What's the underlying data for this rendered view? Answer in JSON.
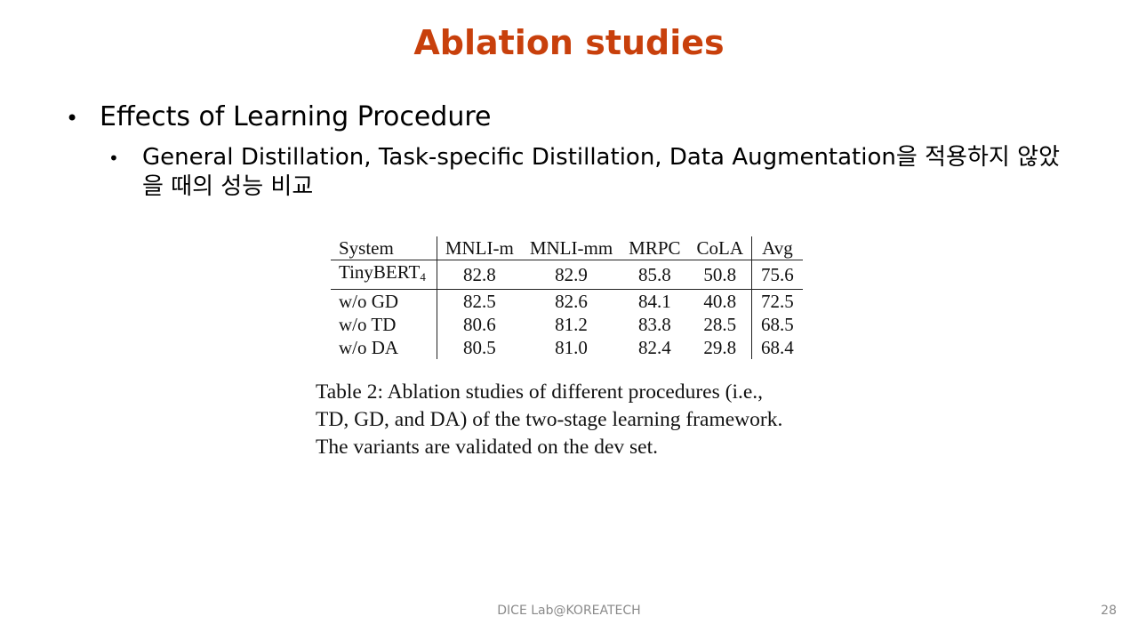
{
  "slide": {
    "title": "Ablation studies",
    "bullet_1": "Effects of Learning Procedure",
    "bullet_2": "General Distillation, Task-specific Distillation, Data Augmentation을 적용하지 않았을 때의 성능 비교",
    "bullet_glyph": "•"
  },
  "table": {
    "headers": [
      "System",
      "MNLI-m",
      "MNLI-mm",
      "MRPC",
      "CoLA",
      "Avg"
    ],
    "rows": [
      {
        "system": "TinyBERT",
        "system_sub": "4",
        "values": [
          "82.8",
          "82.9",
          "85.8",
          "50.8",
          "75.6"
        ]
      },
      {
        "system": "w/o GD",
        "system_sub": "",
        "values": [
          "82.5",
          "82.6",
          "84.1",
          "40.8",
          "72.5"
        ]
      },
      {
        "system": "w/o TD",
        "system_sub": "",
        "values": [
          "80.6",
          "81.2",
          "83.8",
          "28.5",
          "68.5"
        ]
      },
      {
        "system": "w/o DA",
        "system_sub": "",
        "values": [
          "80.5",
          "81.0",
          "82.4",
          "29.8",
          "68.4"
        ]
      }
    ],
    "caption_lines": [
      "Table 2: Ablation studies of different procedures (i.e.,",
      "TD, GD, and DA) of the two-stage learning framework.",
      "The variants are validated on the dev set."
    ]
  },
  "footer": {
    "lab": "DICE  Lab@KOREATECH",
    "page_number": "28"
  },
  "colors": {
    "title": "#C8400C",
    "footer": "#8a8a8a"
  }
}
